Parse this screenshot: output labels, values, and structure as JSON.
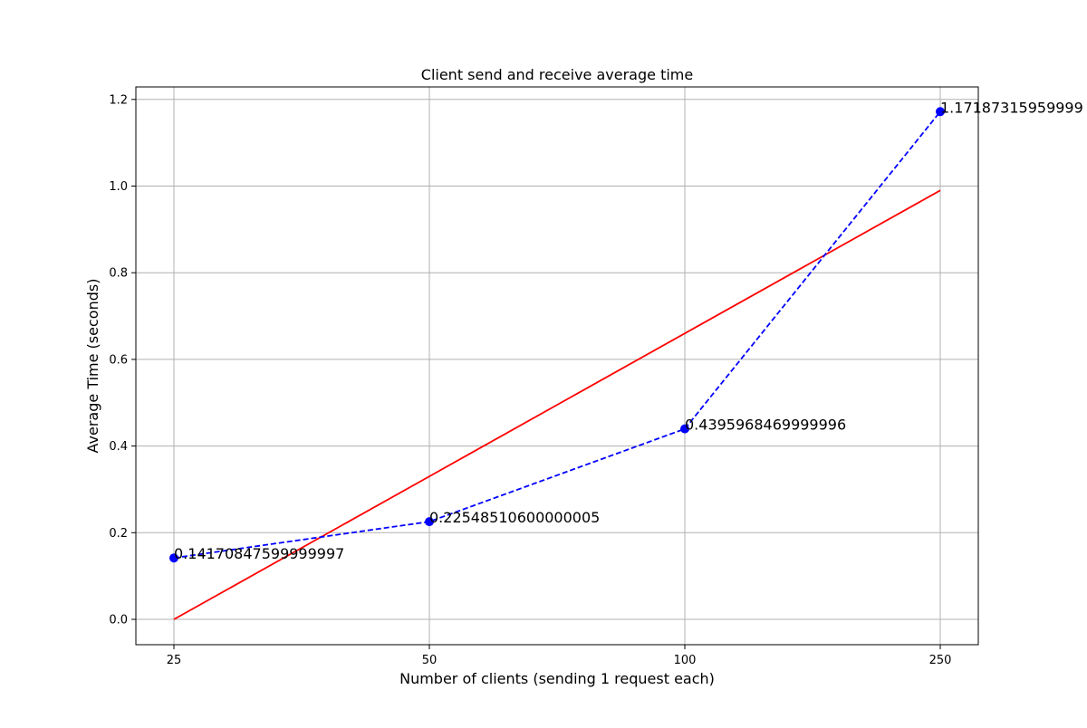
{
  "chart_data": {
    "type": "line",
    "title": "Client send and receive average time",
    "xlabel": "Number of clients (sending 1 request each)",
    "ylabel": "Average Time (seconds)",
    "x_categories": [
      "25",
      "50",
      "100",
      "250"
    ],
    "ylim": [
      -0.06,
      1.23
    ],
    "yticks": [
      "0.0",
      "0.2",
      "0.4",
      "0.6",
      "0.8",
      "1.0",
      "1.2"
    ],
    "grid": true,
    "series": [
      {
        "style": "dashed-with-markers",
        "color": "#0000ff",
        "values": [
          0.14170847599999997,
          0.22548510600000005,
          0.4395968469999996,
          1.17187315959999
        ],
        "data_labels": [
          "0.14170847599999997",
          "0.22548510600000005",
          "0.4395968469999996",
          "1.17187315959999"
        ]
      },
      {
        "style": "solid",
        "color": "#ff0000",
        "values": [
          0.0,
          0.33,
          0.66,
          0.99
        ]
      }
    ]
  }
}
